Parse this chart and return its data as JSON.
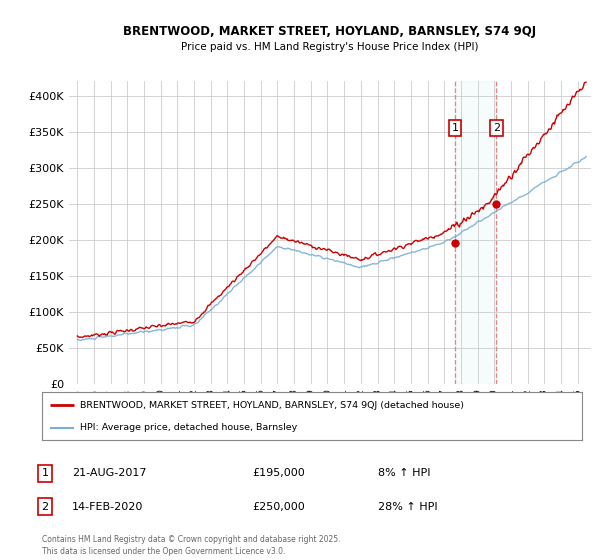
{
  "title": "BRENTWOOD, MARKET STREET, HOYLAND, BARNSLEY, S74 9QJ",
  "subtitle": "Price paid vs. HM Land Registry's House Price Index (HPI)",
  "legend_line1": "BRENTWOOD, MARKET STREET, HOYLAND, BARNSLEY, S74 9QJ (detached house)",
  "legend_line2": "HPI: Average price, detached house, Barnsley",
  "annotation1_date": "21-AUG-2017",
  "annotation1_price": "£195,000",
  "annotation1_hpi": "8% ↑ HPI",
  "annotation2_date": "14-FEB-2020",
  "annotation2_price": "£250,000",
  "annotation2_hpi": "28% ↑ HPI",
  "footer": "Contains HM Land Registry data © Crown copyright and database right 2025.\nThis data is licensed under the Open Government Licence v3.0.",
  "red_color": "#cc0000",
  "blue_color": "#7aafd4",
  "dashed_red": "#e88080",
  "background_color": "#ffffff",
  "grid_color": "#cccccc",
  "ylim": [
    0,
    420000
  ],
  "yticks": [
    0,
    50000,
    100000,
    150000,
    200000,
    250000,
    300000,
    350000,
    400000
  ],
  "sale1_year": 2017.64,
  "sale1_price": 195000,
  "sale2_year": 2020.12,
  "sale2_price": 250000
}
